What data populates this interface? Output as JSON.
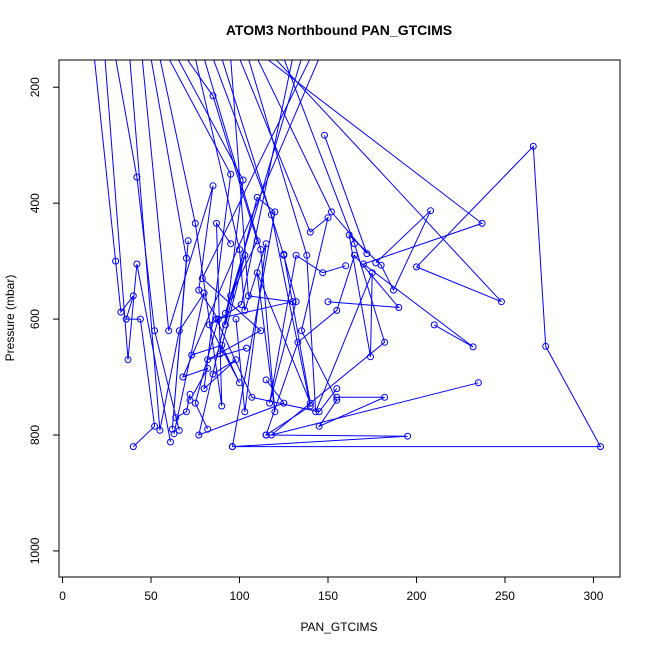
{
  "chart_data": {
    "type": "line",
    "title": "ATOM3 Northbound PAN_GTCIMS",
    "xlabel": "PAN_GTCIMS",
    "ylabel": "Pressure (mbar)",
    "xlim": [
      -2,
      315
    ],
    "ylim": [
      1045,
      153
    ],
    "y_inverted": true,
    "x_ticks": [
      0,
      50,
      100,
      150,
      200,
      250,
      300
    ],
    "y_ticks": [
      200,
      400,
      600,
      800,
      1000
    ],
    "grid": false,
    "color": "#0000ff",
    "marker": "open-circle",
    "series": [
      {
        "x": [
          18,
          30,
          33,
          40,
          36,
          44,
          52,
          40
        ],
        "y": [
          150,
          500,
          588,
          560,
          600,
          600,
          785,
          820
        ]
      },
      {
        "x": [
          24,
          37,
          42,
          61
        ],
        "y": [
          150,
          670,
          505,
          812
        ]
      },
      {
        "x": [
          30,
          42,
          52,
          66,
          64,
          70,
          72
        ],
        "y": [
          150,
          355,
          620,
          792,
          770,
          760,
          730
        ]
      },
      {
        "x": [
          38,
          55,
          66,
          80,
          63
        ],
        "y": [
          150,
          792,
          620,
          555,
          798
        ]
      },
      {
        "x": [
          45,
          60,
          85,
          77,
          88,
          75,
          82
        ],
        "y": [
          150,
          620,
          370,
          550,
          600,
          745,
          790
        ]
      },
      {
        "x": [
          50,
          70,
          62,
          71
        ],
        "y": [
          150,
          495,
          790,
          465
        ]
      },
      {
        "x": [
          55,
          75,
          90,
          87,
          95
        ],
        "y": [
          150,
          435,
          750,
          435,
          470
        ]
      },
      {
        "x": [
          60,
          95,
          80,
          98,
          85
        ],
        "y": [
          150,
          350,
          720,
          670,
          695
        ]
      },
      {
        "x": [
          65,
          102,
          92,
          110,
          120,
          96
        ],
        "y": [
          150,
          360,
          610,
          390,
          415,
          820
        ]
      },
      {
        "x": [
          70,
          85,
          110,
          95,
          77,
          125,
          115
        ],
        "y": [
          150,
          215,
          465,
          560,
          800,
          745,
          705
        ]
      },
      {
        "x": [
          75,
          100,
          103,
          115,
          103,
          98
        ],
        "y": [
          150,
          480,
          585,
          470,
          760,
          600
        ]
      },
      {
        "x": [
          80,
          112,
          120,
          110,
          140,
          125
        ],
        "y": [
          150,
          480,
          760,
          520,
          745,
          488
        ]
      },
      {
        "x": [
          85,
          118,
          140,
          115,
          133,
          155,
          165,
          190,
          150
        ],
        "y": [
          150,
          420,
          750,
          800,
          640,
          585,
          490,
          580,
          570
        ]
      },
      {
        "x": [
          90,
          125,
          132,
          117,
          132,
          147,
          160
        ],
        "y": [
          150,
          490,
          570,
          745,
          490,
          520,
          508
        ]
      },
      {
        "x": [
          95,
          105,
          130,
          87,
          107,
          145,
          155
        ],
        "y": [
          150,
          560,
          570,
          600,
          735,
          760,
          720
        ]
      },
      {
        "x": [
          100,
          140,
          150,
          135,
          155,
          145,
          182,
          155
        ],
        "y": [
          150,
          450,
          425,
          620,
          740,
          785,
          735,
          735
        ]
      },
      {
        "x": [
          105,
          138,
          143,
          175,
          174,
          162,
          180,
          187,
          208,
          177
        ],
        "y": [
          150,
          490,
          760,
          520,
          665,
          455,
          507,
          550,
          413,
          503
        ]
      },
      {
        "x": [
          110,
          152,
          172,
          148
        ],
        "y": [
          150,
          415,
          487,
          283
        ]
      },
      {
        "x": [
          115,
          237,
          170,
          232,
          210
        ],
        "y": [
          150,
          435,
          505,
          648,
          610
        ]
      },
      {
        "x": [
          120,
          248,
          200,
          266,
          273,
          304,
          96,
          195,
          115
        ],
        "y": [
          150,
          570,
          510,
          302,
          647,
          820,
          820,
          802,
          800
        ]
      },
      {
        "x": [
          125,
          165,
          182,
          118,
          235
        ],
        "y": [
          150,
          470,
          640,
          800,
          710
        ]
      },
      {
        "x": [
          130,
          101,
          83,
          100,
          90,
          73
        ],
        "y": [
          150,
          575,
          610,
          710,
          645,
          662
        ]
      },
      {
        "x": [
          135,
          92,
          103,
          89
        ],
        "y": [
          150,
          590,
          490,
          660
        ]
      },
      {
        "x": [
          140,
          79,
          112,
          82,
          104
        ],
        "y": [
          150,
          530,
          620,
          670,
          650
        ]
      },
      {
        "x": [
          145,
          68,
          82,
          72
        ],
        "y": [
          150,
          700,
          685,
          740
        ]
      }
    ]
  }
}
